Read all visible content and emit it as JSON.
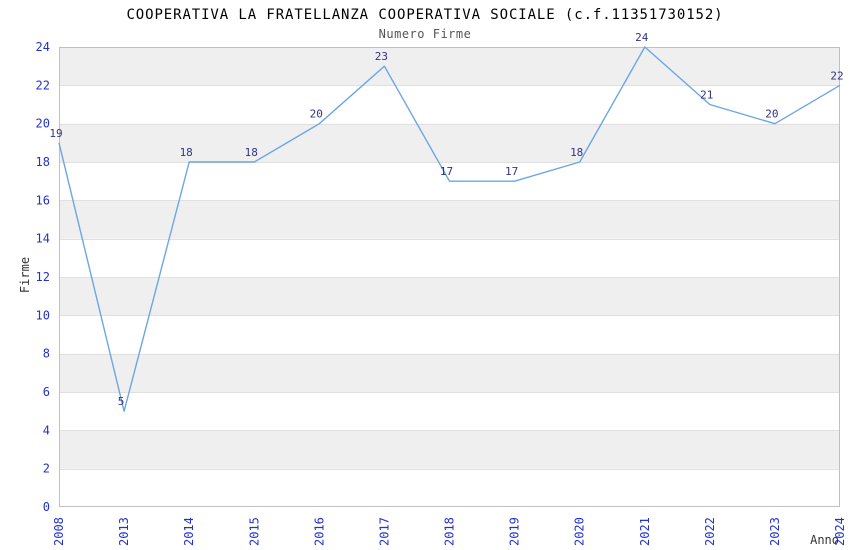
{
  "chart_data": {
    "type": "line",
    "title": "COOPERATIVA LA FRATELLANZA COOPERATIVA SOCIALE (c.f.11351730152)",
    "subtitle": "Numero Firme",
    "xlabel": "Anno",
    "ylabel": "Firme",
    "categories": [
      "2008",
      "2013",
      "2014",
      "2015",
      "2016",
      "2017",
      "2018",
      "2019",
      "2020",
      "2021",
      "2022",
      "2023",
      "2024"
    ],
    "values": [
      19,
      5,
      18,
      18,
      20,
      23,
      17,
      17,
      18,
      24,
      21,
      20,
      22
    ],
    "y_ticks": [
      0,
      2,
      4,
      6,
      8,
      10,
      12,
      14,
      16,
      18,
      20,
      22,
      24
    ],
    "ylim": [
      0,
      24
    ],
    "grid": "horizontal-bands",
    "legend_position": "none",
    "colors": {
      "line": "#6CA6E4",
      "tick_labels": "#2233CC",
      "point_labels": "#333388",
      "band_gray": "#EFEFEF",
      "band_white": "#FFFFFF",
      "gridline": "#E0E0E0",
      "plot_border": "#C0C0C0",
      "title": "#000000",
      "subtitle": "#555555",
      "axis_titles": "#333333"
    }
  }
}
